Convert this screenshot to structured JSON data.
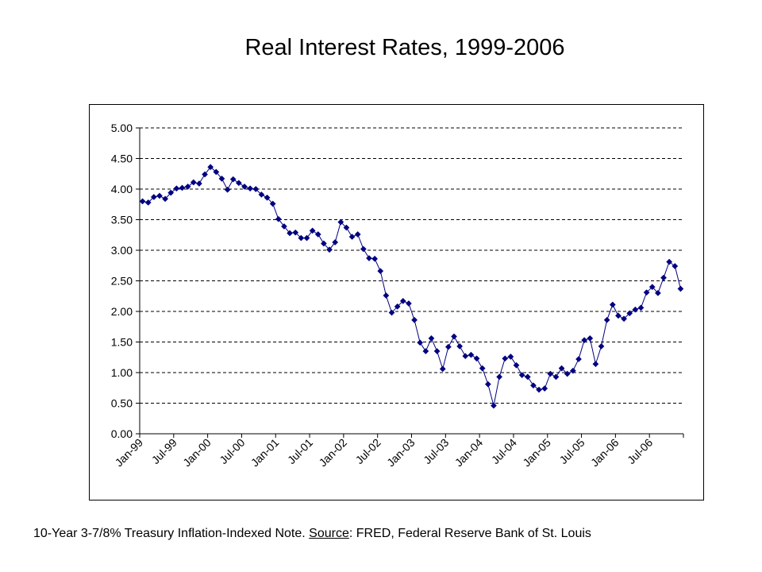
{
  "slide": {
    "title": "Real Interest Rates, 1999-2006",
    "caption_prefix": "10-Year 3-7/8% Treasury Inflation-Indexed Note. ",
    "caption_source_label": "Source",
    "caption_suffix": ": FRED, Federal Reserve Bank of St. Louis"
  },
  "colors": {
    "series": "#000080",
    "grid": "#000000",
    "background": "#ffffff"
  },
  "chart_data": {
    "type": "line",
    "title": "",
    "xlabel": "",
    "ylabel": "",
    "ylim": [
      0,
      5
    ],
    "y_ticks": [
      "0.00",
      "0.50",
      "1.00",
      "1.50",
      "2.00",
      "2.50",
      "3.00",
      "3.50",
      "4.00",
      "4.50",
      "5.00"
    ],
    "x_tick_labels": [
      "Jan-99",
      "Jul-99",
      "Jan-00",
      "Jul-00",
      "Jan-01",
      "Jul-01",
      "Jan-02",
      "Jul-02",
      "Jan-03",
      "Jul-03",
      "Jan-04",
      "Jul-04",
      "Jan-05",
      "Jul-05",
      "Jan-06",
      "Jul-06"
    ],
    "x_start": "Jan-99",
    "x_end": "Dec-06",
    "grid": "horizontal dashed",
    "legend": "none",
    "marker": "diamond",
    "series": [
      {
        "values": [
          3.8,
          3.78,
          3.87,
          3.89,
          3.84,
          3.94,
          4.01,
          4.02,
          4.04,
          4.11,
          4.09,
          4.24,
          4.36,
          4.28,
          4.17,
          3.99,
          4.16,
          4.1,
          4.04,
          4.01,
          4.0,
          3.91,
          3.86,
          3.76,
          3.51,
          3.39,
          3.28,
          3.29,
          3.2,
          3.2,
          3.32,
          3.26,
          3.11,
          3.01,
          3.13,
          3.46,
          3.37,
          3.22,
          3.26,
          3.02,
          2.87,
          2.86,
          2.66,
          2.26,
          1.98,
          2.08,
          2.17,
          2.13,
          1.86,
          1.49,
          1.35,
          1.56,
          1.35,
          1.06,
          1.42,
          1.59,
          1.43,
          1.27,
          1.29,
          1.23,
          1.07,
          0.81,
          0.46,
          0.93,
          1.23,
          1.26,
          1.12,
          0.96,
          0.93,
          0.79,
          0.72,
          0.74,
          0.98,
          0.93,
          1.07,
          0.98,
          1.03,
          1.22,
          1.53,
          1.56,
          1.14,
          1.43,
          1.86,
          2.11,
          1.93,
          1.88,
          1.97,
          2.03,
          2.06,
          2.31,
          2.4,
          2.3,
          2.55,
          2.81,
          2.74,
          2.37
        ]
      }
    ]
  }
}
